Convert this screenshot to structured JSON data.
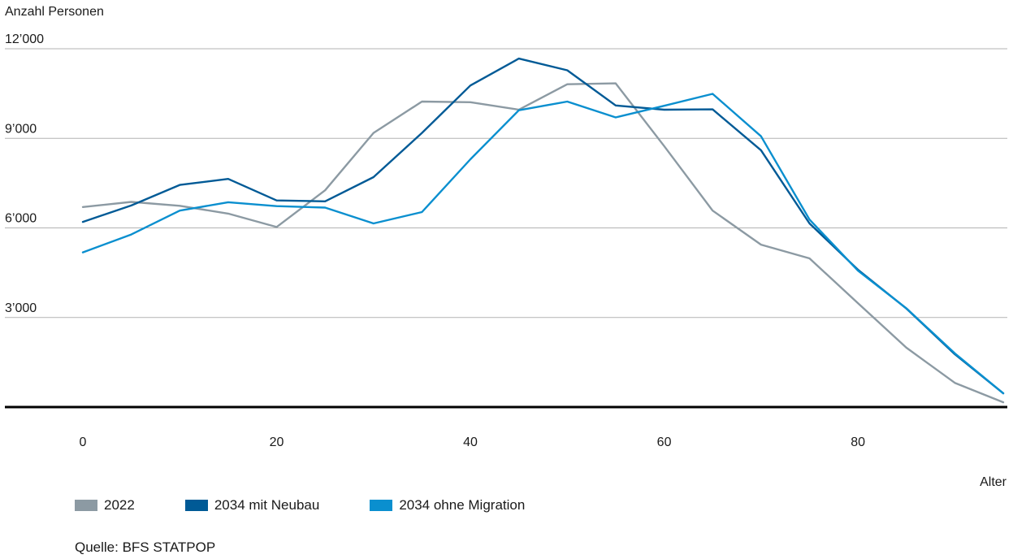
{
  "chart_data": {
    "type": "line",
    "ylabel": "Anzahl Personen",
    "xlabel": "Alter",
    "xlim": [
      0,
      95
    ],
    "ylim": [
      0,
      12000
    ],
    "x_ticks": [
      0,
      20,
      40,
      60,
      80
    ],
    "x_tick_labels": [
      "0",
      "20",
      "40",
      "60",
      "80"
    ],
    "y_ticks": [
      3000,
      6000,
      9000,
      12000
    ],
    "y_tick_labels": [
      "3’000",
      "6’000",
      "9’000",
      "12’000"
    ],
    "grid": "horizontal",
    "legend_position": "bottom-left",
    "x": [
      0,
      5,
      10,
      15,
      20,
      25,
      30,
      35,
      40,
      45,
      50,
      55,
      60,
      65,
      70,
      75,
      80,
      85,
      90,
      95
    ],
    "series": [
      {
        "name": "2022",
        "color": "#8c9aa3",
        "values": [
          6700,
          6870,
          6740,
          6480,
          6030,
          7260,
          9180,
          10230,
          10210,
          9960,
          10810,
          10840,
          8740,
          6580,
          5440,
          4980,
          3480,
          1990,
          810,
          160
        ]
      },
      {
        "name": "2034 mit Neubau",
        "color": "#005a96",
        "values": [
          6200,
          6750,
          7440,
          7640,
          6920,
          6890,
          7700,
          9180,
          10770,
          11670,
          11280,
          10100,
          9960,
          9970,
          8600,
          6150,
          4600,
          3300,
          1770,
          460
        ]
      },
      {
        "name": "2034 ohne Migration",
        "color": "#0a8fcf",
        "values": [
          5180,
          5780,
          6580,
          6860,
          6730,
          6680,
          6150,
          6530,
          8300,
          9940,
          10230,
          9700,
          10090,
          10490,
          9070,
          6280,
          4570,
          3310,
          1800,
          460
        ]
      }
    ]
  },
  "source": "Quelle: BFS STATPOP"
}
